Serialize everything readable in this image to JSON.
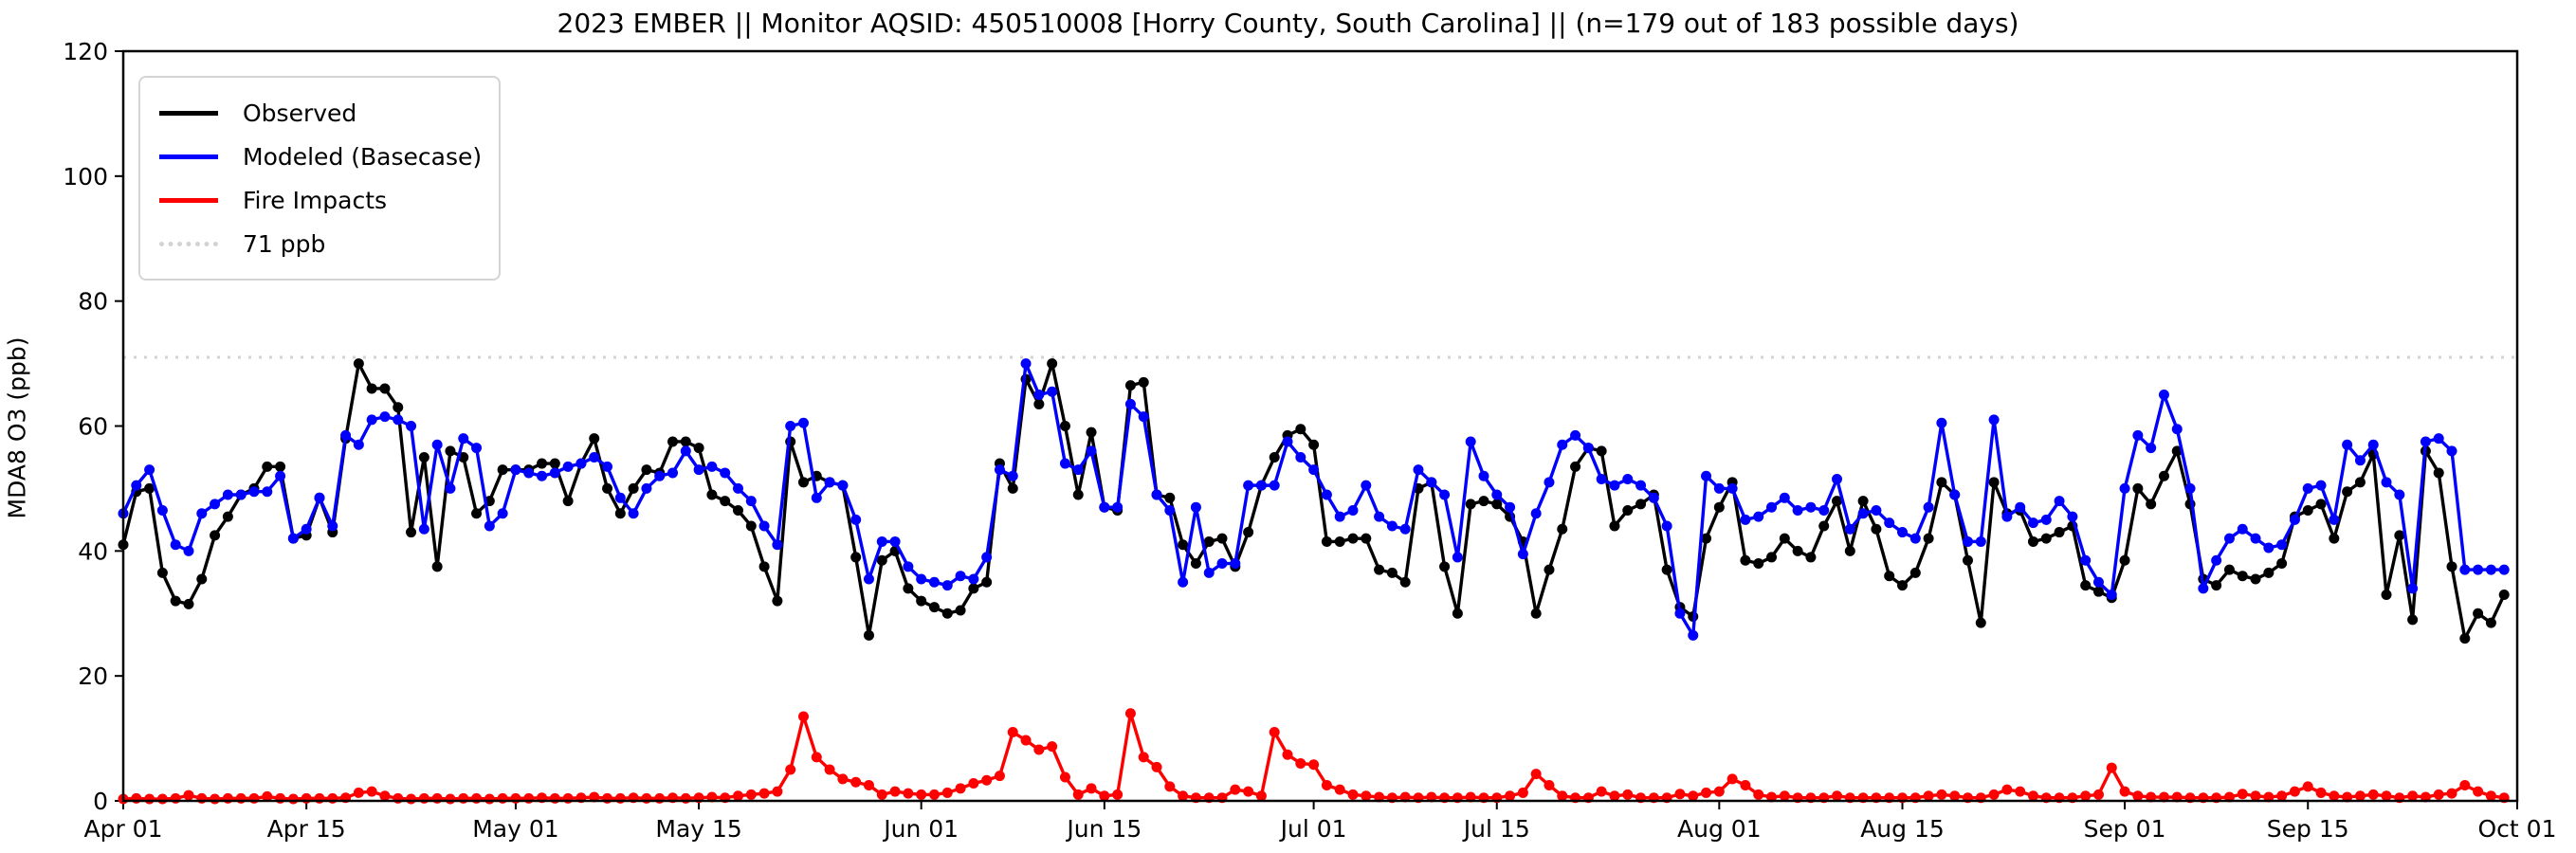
{
  "title": "2023 EMBER || Monitor AQSID: 450510008 [Horry County, South Carolina] || (n=179 out of 183 possible days)",
  "legend": {
    "items": [
      {
        "label": "Observed",
        "color": "#000000",
        "style": "solid"
      },
      {
        "label": "Modeled (Basecase)",
        "color": "#0000ff",
        "style": "solid"
      },
      {
        "label": "Fire Impacts",
        "color": "#ff0000",
        "style": "solid"
      },
      {
        "label": "71 ppb",
        "color": "#d3d3d3",
        "style": "dotted"
      }
    ]
  },
  "chart_data": {
    "type": "line",
    "title": "2023 EMBER || Monitor AQSID: 450510008 [Horry County, South Carolina] || (n=179 out of 183 possible days)",
    "xlabel": "",
    "ylabel": "MDA8 O3 (ppb)",
    "ylim": [
      0,
      120
    ],
    "yticks": [
      0,
      20,
      40,
      60,
      80,
      100,
      120
    ],
    "x_unit": "days since Apr 01 2023",
    "n_days": 183,
    "xticks": {
      "labels": [
        "Apr 01",
        "Apr 15",
        "May 01",
        "May 15",
        "Jun 01",
        "Jun 15",
        "Jul 01",
        "Jul 15",
        "Aug 01",
        "Aug 15",
        "Sep 01",
        "Sep 15",
        "Oct 01"
      ],
      "days": [
        0,
        14,
        30,
        44,
        61,
        75,
        91,
        105,
        122,
        136,
        153,
        167,
        183
      ]
    },
    "grid": false,
    "legend_position": "upper left",
    "threshold_line": {
      "value": 71,
      "label": "71 ppb",
      "color": "#d3d3d3",
      "style": "dotted"
    },
    "series": [
      {
        "name": "Observed",
        "color": "#000000",
        "marker": "circle",
        "values": [
          41,
          49.5,
          50,
          36.5,
          32,
          31.5,
          35.5,
          42.5,
          45.5,
          49,
          50,
          53.5,
          53.5,
          42,
          42.5,
          48.5,
          43,
          58,
          70,
          66,
          66,
          63,
          43,
          55,
          37.5,
          56,
          55,
          46,
          48,
          53,
          53,
          53,
          54,
          54,
          48,
          54,
          58,
          50,
          46,
          50,
          53,
          52.5,
          57.5,
          57.5,
          56.5,
          49,
          48,
          46.5,
          44,
          37.5,
          32,
          57.5,
          51,
          52,
          51,
          50.5,
          39,
          26.5,
          38.5,
          40,
          34,
          32,
          31,
          30,
          30.5,
          34,
          35,
          54,
          50,
          67.5,
          63.5,
          70,
          60,
          49,
          59,
          47,
          46.5,
          66.5,
          67,
          49,
          48.5,
          41,
          38,
          41.5,
          42,
          37.5,
          43,
          50.5,
          55,
          58.5,
          59.5,
          57,
          41.5,
          41.5,
          42,
          42,
          37,
          36.5,
          35,
          50,
          51,
          37.5,
          30,
          47.5,
          48,
          47.5,
          45.5,
          41.5,
          30,
          37,
          43.5,
          53.5,
          56.5,
          56,
          44,
          46.5,
          47.5,
          49,
          37,
          31,
          29.5,
          42,
          47,
          51,
          38.5,
          38,
          39,
          42,
          40,
          39,
          44,
          48,
          40,
          48,
          43.5,
          36,
          34.5,
          36.5,
          42,
          51,
          49,
          38.5,
          28.5,
          51,
          46,
          46.5,
          41.5,
          42,
          43,
          44,
          34.5,
          33.5,
          32.5,
          38.5,
          50,
          47.5,
          52,
          56,
          47.5,
          35.5,
          34.5,
          37,
          36,
          35.5,
          36.5,
          38,
          45.5,
          46.5,
          47.5,
          42,
          49.5,
          51,
          55.5,
          33,
          42.5,
          29,
          56,
          52.5,
          37.5,
          26,
          30,
          28.5,
          33
        ]
      },
      {
        "name": "Modeled (Basecase)",
        "color": "#0000ff",
        "marker": "circle",
        "values": [
          46,
          50.5,
          53,
          46.5,
          41,
          40,
          46,
          47.5,
          49,
          49,
          49.5,
          49.5,
          52,
          42,
          43.5,
          48.5,
          44,
          58.5,
          57,
          61,
          61.5,
          61,
          60,
          43.5,
          57,
          50,
          58,
          56.5,
          44,
          46,
          53,
          52.5,
          52,
          52.5,
          53.5,
          54,
          55,
          53.5,
          48.5,
          46,
          50,
          52,
          52.5,
          56,
          53,
          53.5,
          52.5,
          50,
          48,
          44,
          41,
          60,
          60.5,
          48.5,
          51,
          50.5,
          45,
          35.5,
          41.5,
          41.5,
          37.5,
          35.5,
          35,
          34.5,
          36,
          35.5,
          39,
          53,
          52,
          70,
          65,
          65.5,
          54,
          53,
          56,
          47,
          47,
          63.5,
          61.5,
          49,
          46.5,
          35,
          47,
          36.5,
          38,
          38,
          50.5,
          50.5,
          50.5,
          57.5,
          55,
          53,
          49,
          45.5,
          46.5,
          50.5,
          45.5,
          44,
          43.5,
          53,
          51,
          49,
          39,
          57.5,
          52,
          49,
          47,
          39.5,
          46,
          51,
          57,
          58.5,
          56.5,
          51.5,
          50.5,
          51.5,
          50.5,
          48.5,
          44,
          30,
          26.5,
          52,
          50,
          50,
          45,
          45.5,
          47,
          48.5,
          46.5,
          47,
          46.5,
          51.5,
          43.5,
          46,
          46.5,
          44.5,
          43,
          42,
          47,
          60.5,
          49,
          41.5,
          41.5,
          61,
          45.5,
          47,
          44.5,
          45,
          48,
          45.5,
          38.5,
          35,
          33,
          50,
          58.5,
          56.5,
          65,
          59.5,
          50,
          34,
          38.5,
          42,
          43.5,
          42,
          40.5,
          41,
          45,
          50,
          50.5,
          45,
          57,
          54.5,
          57,
          51,
          49,
          34,
          57.5,
          58,
          56,
          37,
          37,
          37,
          37
        ]
      },
      {
        "name": "Fire Impacts",
        "color": "#ff0000",
        "marker": "circle",
        "values": [
          0.3,
          0.4,
          0.3,
          0.3,
          0.4,
          0.9,
          0.4,
          0.3,
          0.4,
          0.4,
          0.4,
          0.7,
          0.4,
          0.3,
          0.4,
          0.4,
          0.4,
          0.5,
          1.3,
          1.5,
          0.8,
          0.4,
          0.3,
          0.4,
          0.4,
          0.3,
          0.4,
          0.4,
          0.3,
          0.4,
          0.4,
          0.4,
          0.5,
          0.4,
          0.4,
          0.5,
          0.6,
          0.4,
          0.4,
          0.5,
          0.4,
          0.4,
          0.5,
          0.4,
          0.5,
          0.6,
          0.5,
          0.8,
          1.0,
          1.2,
          1.5,
          5,
          13.5,
          7,
          5,
          3.5,
          3,
          2.5,
          1,
          1.5,
          1.2,
          1,
          1,
          1.3,
          2,
          2.8,
          3.3,
          4,
          11,
          9.7,
          8.2,
          8.7,
          3.8,
          1,
          2,
          0.8,
          1,
          14,
          7,
          5.4,
          2.3,
          0.8,
          0.5,
          0.5,
          0.5,
          1.8,
          1.5,
          0.8,
          11,
          7.4,
          6,
          5.8,
          2.5,
          1.8,
          1,
          0.8,
          0.6,
          0.5,
          0.6,
          0.5,
          0.6,
          0.5,
          0.5,
          0.6,
          0.5,
          0.5,
          0.8,
          1.3,
          4.3,
          2.5,
          0.8,
          0.5,
          0.5,
          1.5,
          0.8,
          1,
          0.5,
          0.5,
          0.5,
          1.1,
          0.8,
          1.3,
          1.5,
          3.5,
          2.5,
          1,
          0.6,
          0.8,
          0.5,
          0.5,
          0.5,
          0.8,
          0.5,
          0.5,
          0.5,
          0.5,
          0.5,
          0.5,
          0.8,
          1,
          0.8,
          0.5,
          0.5,
          1,
          1.8,
          1.5,
          0.8,
          0.5,
          0.5,
          0.5,
          0.8,
          1,
          5.3,
          1.5,
          0.8,
          0.6,
          0.6,
          0.6,
          0.5,
          0.5,
          0.5,
          0.6,
          1.1,
          0.8,
          0.6,
          0.8,
          1.5,
          2.3,
          1.3,
          0.8,
          0.6,
          0.8,
          1,
          0.8,
          0.5,
          0.8,
          0.6,
          1,
          1.2,
          2.5,
          1.5,
          0.8,
          0.5
        ]
      }
    ]
  }
}
